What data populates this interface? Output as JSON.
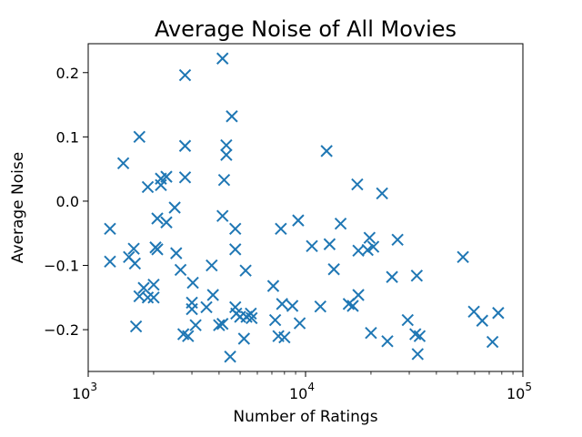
{
  "chart_data": {
    "type": "scatter",
    "title": "Average Noise of All Movies",
    "xlabel": "Number of Ratings",
    "ylabel": "Average Noise",
    "x_scale": "log",
    "xlim": [
      1000,
      100000
    ],
    "ylim": [
      -0.265,
      0.245
    ],
    "x_ticks": [
      {
        "value": 1000,
        "base": "10",
        "exp": "3"
      },
      {
        "value": 10000,
        "base": "10",
        "exp": "4"
      },
      {
        "value": 100000,
        "base": "10",
        "exp": "5"
      }
    ],
    "y_ticks": [
      {
        "value": 0.2,
        "label": "0.2"
      },
      {
        "value": 0.1,
        "label": "0.1"
      },
      {
        "value": 0.0,
        "label": "0.0"
      },
      {
        "value": -0.1,
        "label": "−0.1"
      },
      {
        "value": -0.2,
        "label": "−0.2"
      }
    ],
    "marker": "x",
    "color": "#1f77b4",
    "grid": false,
    "points": [
      {
        "x": 1260,
        "y": -0.043
      },
      {
        "x": 1260,
        "y": -0.094
      },
      {
        "x": 1450,
        "y": 0.059
      },
      {
        "x": 1540,
        "y": -0.087
      },
      {
        "x": 1620,
        "y": -0.074
      },
      {
        "x": 1640,
        "y": -0.097
      },
      {
        "x": 1660,
        "y": -0.195
      },
      {
        "x": 1720,
        "y": 0.1
      },
      {
        "x": 1720,
        "y": -0.148
      },
      {
        "x": 1800,
        "y": -0.135
      },
      {
        "x": 1880,
        "y": 0.022
      },
      {
        "x": 1880,
        "y": -0.15
      },
      {
        "x": 2000,
        "y": -0.13
      },
      {
        "x": 2000,
        "y": -0.15
      },
      {
        "x": 2040,
        "y": -0.072
      },
      {
        "x": 2080,
        "y": -0.027
      },
      {
        "x": 2080,
        "y": -0.075
      },
      {
        "x": 2160,
        "y": 0.035
      },
      {
        "x": 2160,
        "y": 0.025
      },
      {
        "x": 2290,
        "y": 0.038
      },
      {
        "x": 2290,
        "y": -0.033
      },
      {
        "x": 2500,
        "y": -0.01
      },
      {
        "x": 2540,
        "y": -0.081
      },
      {
        "x": 2660,
        "y": -0.107
      },
      {
        "x": 2740,
        "y": -0.207
      },
      {
        "x": 2790,
        "y": 0.196
      },
      {
        "x": 2790,
        "y": 0.086
      },
      {
        "x": 2790,
        "y": 0.037
      },
      {
        "x": 2880,
        "y": -0.21
      },
      {
        "x": 3000,
        "y": -0.158
      },
      {
        "x": 3000,
        "y": -0.168
      },
      {
        "x": 3030,
        "y": -0.127
      },
      {
        "x": 3120,
        "y": -0.193
      },
      {
        "x": 3500,
        "y": -0.165
      },
      {
        "x": 3700,
        "y": -0.1
      },
      {
        "x": 3750,
        "y": -0.146
      },
      {
        "x": 4000,
        "y": -0.193
      },
      {
        "x": 4150,
        "y": -0.023
      },
      {
        "x": 4150,
        "y": -0.191
      },
      {
        "x": 4150,
        "y": 0.222
      },
      {
        "x": 4220,
        "y": 0.033
      },
      {
        "x": 4320,
        "y": 0.087
      },
      {
        "x": 4320,
        "y": 0.072
      },
      {
        "x": 4500,
        "y": -0.242
      },
      {
        "x": 4580,
        "y": 0.132
      },
      {
        "x": 4750,
        "y": -0.043
      },
      {
        "x": 4750,
        "y": -0.075
      },
      {
        "x": 4750,
        "y": -0.165
      },
      {
        "x": 4800,
        "y": -0.175
      },
      {
        "x": 5000,
        "y": -0.18
      },
      {
        "x": 5210,
        "y": -0.214
      },
      {
        "x": 5300,
        "y": -0.108
      },
      {
        "x": 5350,
        "y": -0.18
      },
      {
        "x": 5600,
        "y": -0.175
      },
      {
        "x": 5650,
        "y": -0.182
      },
      {
        "x": 7100,
        "y": -0.132
      },
      {
        "x": 7250,
        "y": -0.185
      },
      {
        "x": 7500,
        "y": -0.21
      },
      {
        "x": 7700,
        "y": -0.043
      },
      {
        "x": 7800,
        "y": -0.16
      },
      {
        "x": 8000,
        "y": -0.212
      },
      {
        "x": 8700,
        "y": -0.163
      },
      {
        "x": 9250,
        "y": -0.03
      },
      {
        "x": 9400,
        "y": -0.19
      },
      {
        "x": 10700,
        "y": -0.07
      },
      {
        "x": 11700,
        "y": -0.164
      },
      {
        "x": 12500,
        "y": 0.078
      },
      {
        "x": 12900,
        "y": -0.067
      },
      {
        "x": 13500,
        "y": -0.106
      },
      {
        "x": 14500,
        "y": -0.035
      },
      {
        "x": 15800,
        "y": -0.16
      },
      {
        "x": 16500,
        "y": -0.163
      },
      {
        "x": 17300,
        "y": 0.026
      },
      {
        "x": 17500,
        "y": -0.077
      },
      {
        "x": 17500,
        "y": -0.146
      },
      {
        "x": 19300,
        "y": -0.076
      },
      {
        "x": 19700,
        "y": -0.057
      },
      {
        "x": 20000,
        "y": -0.205
      },
      {
        "x": 20500,
        "y": -0.071
      },
      {
        "x": 22500,
        "y": 0.012
      },
      {
        "x": 23800,
        "y": -0.218
      },
      {
        "x": 25000,
        "y": -0.118
      },
      {
        "x": 26500,
        "y": -0.06
      },
      {
        "x": 29500,
        "y": -0.185
      },
      {
        "x": 32000,
        "y": -0.207
      },
      {
        "x": 32500,
        "y": -0.116
      },
      {
        "x": 32800,
        "y": -0.238
      },
      {
        "x": 33500,
        "y": -0.21
      },
      {
        "x": 53000,
        "y": -0.087
      },
      {
        "x": 59500,
        "y": -0.172
      },
      {
        "x": 65000,
        "y": -0.186
      },
      {
        "x": 72500,
        "y": -0.219
      },
      {
        "x": 77000,
        "y": -0.174
      }
    ]
  }
}
